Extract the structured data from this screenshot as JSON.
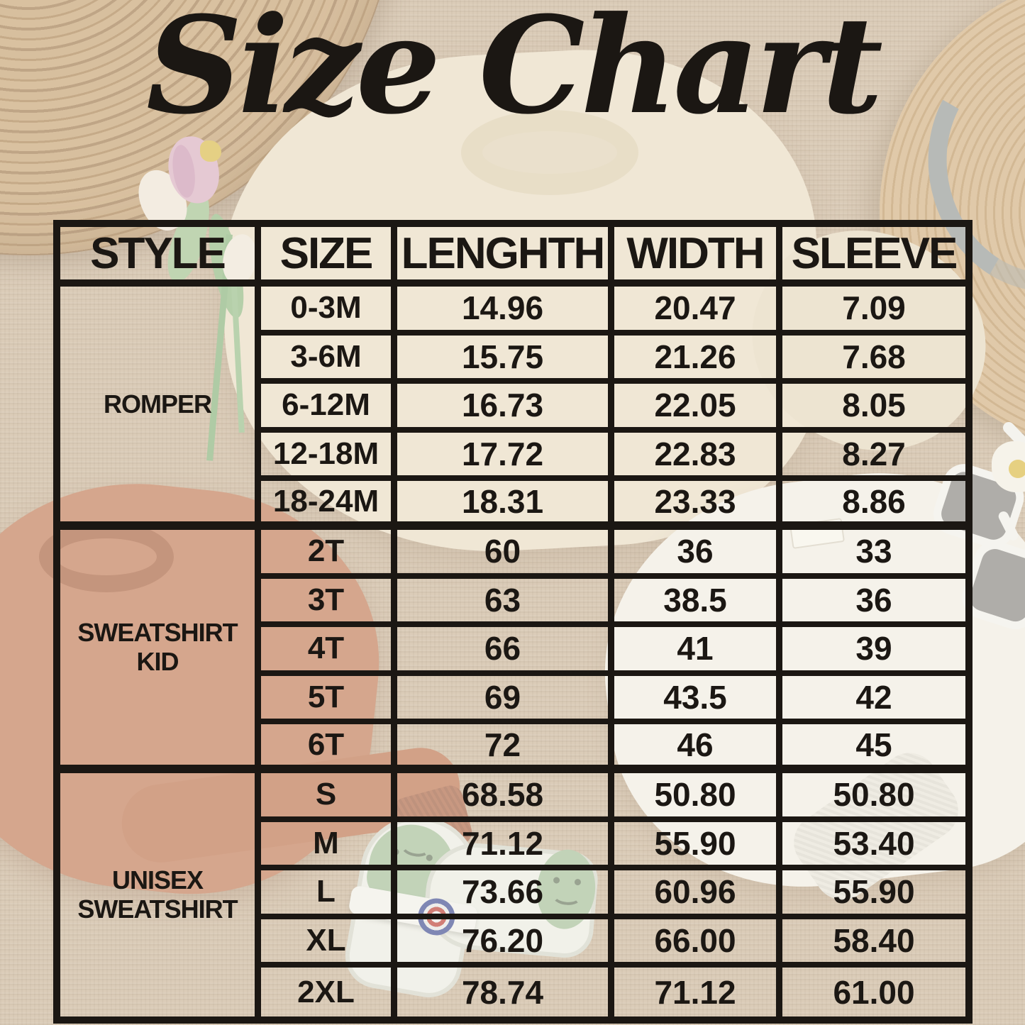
{
  "title": "Size Chart",
  "table": {
    "headers": [
      "STYLE",
      "SIZE",
      "LENGHTH",
      "WIDTH",
      "SLEEVE"
    ],
    "groups": [
      {
        "style": "ROMPER",
        "rows": [
          {
            "size": "0-3M",
            "length": "14.96",
            "width": "20.47",
            "sleeve": "7.09"
          },
          {
            "size": "3-6M",
            "length": "15.75",
            "width": "21.26",
            "sleeve": "7.68"
          },
          {
            "size": "6-12M",
            "length": "16.73",
            "width": "22.05",
            "sleeve": "8.05"
          },
          {
            "size": "12-18M",
            "length": "17.72",
            "width": "22.83",
            "sleeve": "8.27"
          },
          {
            "size": "18-24M",
            "length": "18.31",
            "width": "23.33",
            "sleeve": "8.86"
          }
        ]
      },
      {
        "style": "SWEATSHIRT KID",
        "rows": [
          {
            "size": "2T",
            "length": "60",
            "width": "36",
            "sleeve": "33"
          },
          {
            "size": "3T",
            "length": "63",
            "width": "38.5",
            "sleeve": "36"
          },
          {
            "size": "4T",
            "length": "66",
            "width": "41",
            "sleeve": "39"
          },
          {
            "size": "5T",
            "length": "69",
            "width": "43.5",
            "sleeve": "42"
          },
          {
            "size": "6T",
            "length": "72",
            "width": "46",
            "sleeve": "45"
          }
        ]
      },
      {
        "style": "UNISEX SWEATSHIRT",
        "rows": [
          {
            "size": "S",
            "length": "68.58",
            "width": "50.80",
            "sleeve": "50.80"
          },
          {
            "size": "M",
            "length": "71.12",
            "width": "55.90",
            "sleeve": "53.40"
          },
          {
            "size": "L",
            "length": "73.66",
            "width": "60.96",
            "sleeve": "55.90"
          },
          {
            "size": "XL",
            "length": "76.20",
            "width": "66.00",
            "sleeve": "58.40"
          },
          {
            "size": "2XL",
            "length": "78.74",
            "width": "71.12",
            "sleeve": "61.00"
          }
        ]
      }
    ]
  },
  "chart_data": {
    "type": "table",
    "title": "Size Chart",
    "columns": [
      "STYLE",
      "SIZE",
      "LENGHTH",
      "WIDTH",
      "SLEEVE"
    ],
    "rows": [
      [
        "ROMPER",
        "0-3M",
        14.96,
        20.47,
        7.09
      ],
      [
        "ROMPER",
        "3-6M",
        15.75,
        21.26,
        7.68
      ],
      [
        "ROMPER",
        "6-12M",
        16.73,
        22.05,
        8.05
      ],
      [
        "ROMPER",
        "12-18M",
        17.72,
        22.83,
        8.27
      ],
      [
        "ROMPER",
        "18-24M",
        18.31,
        23.33,
        8.86
      ],
      [
        "SWEATSHIRT KID",
        "2T",
        60,
        36,
        33
      ],
      [
        "SWEATSHIRT KID",
        "3T",
        63,
        38.5,
        36
      ],
      [
        "SWEATSHIRT KID",
        "4T",
        66,
        41,
        39
      ],
      [
        "SWEATSHIRT KID",
        "5T",
        69,
        43.5,
        42
      ],
      [
        "SWEATSHIRT KID",
        "6T",
        72,
        46,
        45
      ],
      [
        "UNISEX SWEATSHIRT",
        "S",
        68.58,
        50.8,
        50.8
      ],
      [
        "UNISEX SWEATSHIRT",
        "M",
        71.12,
        55.9,
        53.4
      ],
      [
        "UNISEX SWEATSHIRT",
        "L",
        73.66,
        60.96,
        55.9
      ],
      [
        "UNISEX SWEATSHIRT",
        "XL",
        76.2,
        66.0,
        58.4
      ],
      [
        "UNISEX SWEATSHIRT",
        "2XL",
        78.74,
        71.12,
        61.0
      ]
    ]
  },
  "colors": {
    "ink": "#1b1713",
    "burlap_background": "#cdb9a1",
    "placemat_straw": "#c7a67c",
    "straw_hat": "#d4b58b",
    "cream_sweatshirt": "#ebe0cb",
    "rust_sweatshirt": "#c58363",
    "white_sweatshirt": "#f3f0e9",
    "shoe_green": "#a9c3a1",
    "tulip_pink": "#dcb5c8"
  }
}
